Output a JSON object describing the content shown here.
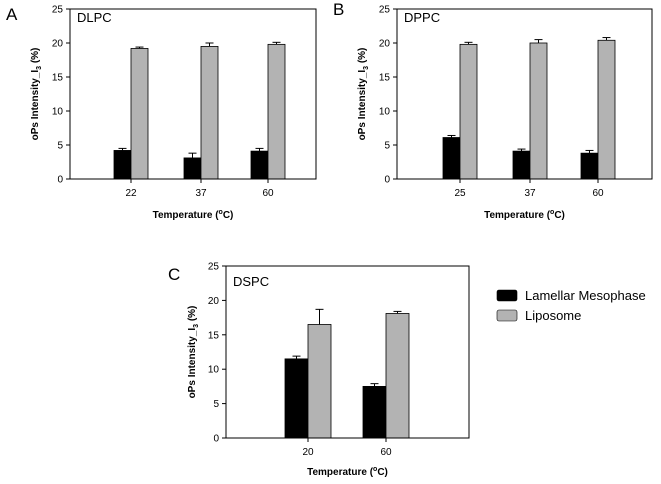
{
  "chart_data": [
    {
      "type": "bar",
      "panel": "A",
      "title": "DLPC",
      "xlabel": "Temperature (",
      "xlabel_sup": "o",
      "xlabel_unit": "C)",
      "ylabel": "oPs Intensity_I",
      "ylabel_sub": "3",
      "ylabel_unit": " (%)",
      "ylim": [
        0,
        25
      ],
      "yticks": [
        0,
        5,
        10,
        15,
        20,
        25
      ],
      "categories": [
        "22",
        "37",
        "60"
      ],
      "series": [
        {
          "name": "Lamellar Mesophase",
          "values": [
            4.2,
            3.1,
            4.1
          ],
          "errors": [
            0.3,
            0.7,
            0.4
          ]
        },
        {
          "name": "Liposome",
          "values": [
            19.2,
            19.5,
            19.8
          ],
          "errors": [
            0.2,
            0.5,
            0.3
          ]
        }
      ]
    },
    {
      "type": "bar",
      "panel": "B",
      "title": "DPPC",
      "xlabel": "Temperature (",
      "xlabel_sup": "o",
      "xlabel_unit": "C)",
      "ylabel": "oPs Intensity_I",
      "ylabel_sub": "3",
      "ylabel_unit": " (%)",
      "ylim": [
        0,
        25
      ],
      "yticks": [
        0,
        5,
        10,
        15,
        20,
        25
      ],
      "categories": [
        "25",
        "37",
        "60"
      ],
      "series": [
        {
          "name": "Lamellar Mesophase",
          "values": [
            6.1,
            4.1,
            3.8
          ],
          "errors": [
            0.3,
            0.3,
            0.4
          ]
        },
        {
          "name": "Liposome",
          "values": [
            19.8,
            20.0,
            20.4
          ],
          "errors": [
            0.3,
            0.5,
            0.4
          ]
        }
      ]
    },
    {
      "type": "bar",
      "panel": "C",
      "title": "DSPC",
      "xlabel": "Temperature (",
      "xlabel_sup": "o",
      "xlabel_unit": "C)",
      "ylabel": "oPs Intensity_I",
      "ylabel_sub": "3",
      "ylabel_unit": " (%)",
      "ylim": [
        0,
        25
      ],
      "yticks": [
        0,
        5,
        10,
        15,
        20,
        25
      ],
      "categories": [
        "20",
        "60"
      ],
      "series": [
        {
          "name": "Lamellar Mesophase",
          "values": [
            11.5,
            7.5
          ],
          "errors": [
            0.4,
            0.4
          ]
        },
        {
          "name": "Liposome",
          "values": [
            16.5,
            18.1
          ],
          "errors": [
            2.2,
            0.3
          ]
        }
      ]
    }
  ],
  "legend": {
    "items": [
      {
        "label": "Lamellar Mesophase",
        "color": "#000000"
      },
      {
        "label": "Liposome",
        "color": "#b3b3b3"
      }
    ]
  },
  "colors": {
    "lamellar": "#000000",
    "liposome": "#b3b3b3"
  }
}
